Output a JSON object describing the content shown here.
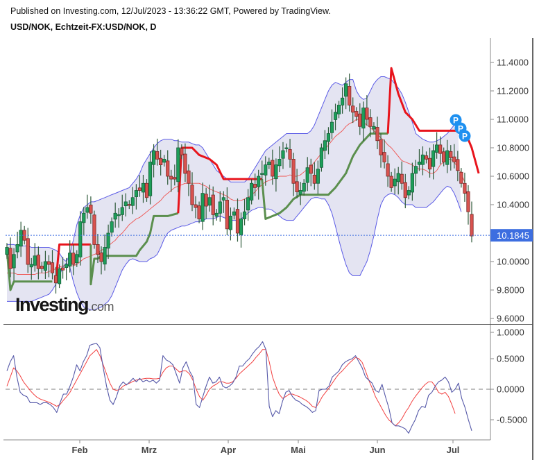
{
  "header": {
    "published": "Published on Investing.com, 12/Jul/2023 - 13:36:22 GMT, Powered by TradingView.",
    "symbol": "USD/NOK, Echtzeit-FX:USD/NOK, D"
  },
  "logo": {
    "main": "Investing",
    "suffix": ".com"
  },
  "colors": {
    "bull": "#1e9e5a",
    "bear": "#d9534f",
    "wick": "#2e5a3a",
    "band": "#5a5ae6",
    "band_fill": "#e4e4f2",
    "sma": "#ef5350",
    "supertrend_up": "#5b8f4e",
    "supertrend_down": "#e8141c",
    "last_price": "#3d6ee0",
    "osc_main": "#5558a8",
    "osc_signal": "#f24040",
    "p_marker": "#1e90f0"
  },
  "chart_data": [
    {
      "type": "candlestick",
      "title": "USD/NOK, Echtzeit-FX:USD/NOK, D",
      "xlabel": "",
      "ylabel": "",
      "ylim": [
        9.55,
        11.55
      ],
      "y_ticks": [
        "11.4000",
        "11.2000",
        "11.0000",
        "10.8000",
        "10.6000",
        "10.4000",
        "10.0000",
        "9.8000",
        "9.6000"
      ],
      "y_tick_values": [
        11.4,
        11.2,
        11.0,
        10.8,
        10.6,
        10.4,
        10.0,
        9.8,
        9.6
      ],
      "last_price": "10.1845",
      "last_price_value": 10.1845,
      "x_ticks": [
        "Feb",
        "Mrz",
        "Apr",
        "Mai",
        "Jun",
        "Jul"
      ],
      "x_tick_index": [
        20,
        40,
        62,
        84,
        107,
        128
      ],
      "grid": false,
      "legend": "none",
      "indicators": [
        "Bollinger Bands",
        "SMA (basis)",
        "SuperTrend",
        "Pivot markers P"
      ],
      "closes": [
        10.1,
        9.95,
        10.05,
        10.12,
        10.22,
        10.15,
        9.98,
        9.98,
        10.04,
        9.95,
        9.95,
        10.0,
        9.98,
        9.92,
        9.85,
        9.95,
        9.94,
        9.98,
        10.06,
        9.98,
        10.05,
        10.28,
        10.34,
        10.38,
        10.34,
        10.12,
        10.05,
        10.0,
        10.1,
        10.2,
        10.28,
        10.34,
        10.33,
        10.38,
        10.42,
        10.4,
        10.45,
        10.5,
        10.5,
        10.55,
        10.45,
        10.7,
        10.78,
        10.72,
        10.68,
        10.72,
        10.6,
        10.58,
        10.58,
        10.8,
        10.75,
        10.62,
        10.55,
        10.4,
        10.38,
        10.3,
        10.48,
        10.39,
        10.45,
        10.33,
        10.34,
        10.42,
        10.45,
        10.23,
        10.32,
        10.35,
        10.2,
        10.3,
        10.35,
        10.45,
        10.55,
        10.52,
        10.6,
        10.62,
        10.68,
        10.7,
        10.6,
        10.68,
        10.72,
        10.78,
        10.8,
        10.72,
        10.55,
        10.49,
        10.5,
        10.55,
        10.66,
        10.62,
        10.55,
        10.65,
        10.8,
        10.85,
        10.9,
        10.98,
        11.05,
        11.1,
        11.15,
        11.25,
        11.1,
        11.05,
        11.02,
        10.95,
        11.08,
        11.0,
        10.95,
        10.95,
        10.85,
        10.75,
        10.7,
        10.6,
        10.52,
        10.58,
        10.62,
        10.55,
        10.45,
        10.5,
        10.62,
        10.67,
        10.7,
        10.75,
        10.72,
        10.65,
        10.78,
        10.82,
        10.76,
        10.7,
        10.78,
        10.73,
        10.7,
        10.64,
        10.55,
        10.48,
        10.35,
        10.18
      ],
      "series": [
        {
          "name": "Bollinger Upper",
          "values": [
            10.12,
            10.12,
            10.12,
            10.11,
            10.11,
            10.11,
            10.11,
            10.1,
            10.1,
            10.1,
            10.1,
            10.1,
            10.1,
            10.09,
            10.08,
            10.06,
            10.02,
            10.0,
            10.05,
            10.15,
            10.26,
            10.33,
            10.38,
            10.4,
            10.42,
            10.42,
            10.43,
            10.44,
            10.45,
            10.46,
            10.47,
            10.48,
            10.49,
            10.5,
            10.51,
            10.52,
            10.55,
            10.58,
            10.62,
            10.68,
            10.72,
            10.76,
            10.8,
            10.83,
            10.85,
            10.86,
            10.86,
            10.86,
            10.85,
            10.85,
            10.84,
            10.84,
            10.84,
            10.83,
            10.82,
            10.82,
            10.8,
            10.76,
            10.72,
            10.68,
            10.64,
            10.62,
            10.6,
            10.58,
            10.56,
            10.56,
            10.56,
            10.56,
            10.56,
            10.58,
            10.62,
            10.66,
            10.7,
            10.74,
            10.78,
            10.8,
            10.82,
            10.84,
            10.86,
            10.88,
            10.9,
            10.9,
            10.9,
            10.9,
            10.9,
            10.9,
            10.9,
            10.92,
            10.96,
            11.02,
            11.08,
            11.14,
            11.2,
            11.24,
            11.26,
            11.25,
            11.24,
            11.26,
            11.28,
            11.28,
            11.2,
            11.16,
            11.14,
            11.15,
            11.2,
            11.25,
            11.28,
            11.3,
            11.3,
            11.29,
            11.28,
            11.25,
            11.22,
            11.18,
            11.12,
            11.05,
            10.98,
            10.9,
            10.88,
            10.86,
            10.85,
            10.84,
            10.84,
            10.85,
            10.86,
            10.88,
            10.9,
            10.93,
            10.96,
            10.98
          ]
        },
        {
          "name": "Bollinger Lower",
          "values": [
            9.72,
            9.72,
            9.72,
            9.72,
            9.72,
            9.72,
            9.72,
            9.72,
            9.73,
            9.74,
            9.75,
            9.76,
            9.77,
            9.8,
            9.84,
            9.9,
            9.96,
            9.99,
            9.96,
            9.86,
            9.78,
            9.72,
            9.68,
            9.67,
            9.66,
            9.66,
            9.67,
            9.68,
            9.7,
            9.72,
            9.76,
            9.82,
            9.88,
            9.94,
            9.98,
            10.01,
            10.02,
            10.01,
            10.0,
            10.0,
            10.0,
            10.02,
            10.03,
            10.05,
            10.1,
            10.16,
            10.2,
            10.22,
            10.23,
            10.24,
            10.25,
            10.25,
            10.26,
            10.27,
            10.28,
            10.28,
            10.29,
            10.3,
            10.3,
            10.3,
            10.31,
            10.32,
            10.31,
            10.3,
            10.29,
            10.29,
            10.29,
            10.3,
            10.32,
            10.34,
            10.36,
            10.37,
            10.38,
            10.38,
            10.37,
            10.37,
            10.36,
            10.34,
            10.32,
            10.3,
            10.29,
            10.29,
            10.29,
            10.32,
            10.35,
            10.38,
            10.41,
            10.44,
            10.45,
            10.45,
            10.44,
            10.44,
            10.4,
            10.34,
            10.25,
            10.15,
            10.06,
            9.98,
            9.92,
            9.9,
            9.9,
            9.9,
            9.95,
            10.0,
            10.08,
            10.18,
            10.3,
            10.4,
            10.45,
            10.47,
            10.48,
            10.47,
            10.45,
            10.42,
            10.4,
            10.4,
            10.4,
            10.38,
            10.38,
            10.38,
            10.38,
            10.4,
            10.42,
            10.45,
            10.48,
            10.51,
            10.53,
            10.52,
            10.48,
            10.42,
            10.35
          ]
        },
        {
          "name": "SMA basis",
          "values": [
            9.92,
            9.92,
            9.92,
            9.91,
            9.91,
            9.91,
            9.91,
            9.91,
            9.91,
            9.92,
            9.92,
            9.92,
            9.93,
            9.94,
            9.95,
            9.96,
            9.97,
            9.97,
            9.97,
            9.97,
            9.98,
            10.0,
            10.02,
            10.03,
            10.04,
            10.05,
            10.06,
            10.08,
            10.09,
            10.11,
            10.13,
            10.15,
            10.18,
            10.2,
            10.23,
            10.26,
            10.28,
            10.3,
            10.31,
            10.33,
            10.35,
            10.37,
            10.39,
            10.41,
            10.43,
            10.46,
            10.48,
            10.5,
            10.52,
            10.53,
            10.54,
            10.55,
            10.55,
            10.55,
            10.55,
            10.55,
            10.54,
            10.53,
            10.51,
            10.5,
            10.49,
            10.48,
            10.47,
            10.46,
            10.44,
            10.43,
            10.43,
            10.43,
            10.44,
            10.45,
            10.47,
            10.49,
            10.52,
            10.54,
            10.56,
            10.57,
            10.58,
            10.59,
            10.6,
            10.6,
            10.6,
            10.61,
            10.6,
            10.6,
            10.61,
            10.63,
            10.65,
            10.67,
            10.7,
            10.73,
            10.76,
            10.79,
            10.82,
            10.85,
            10.88,
            10.9,
            10.92,
            10.95,
            10.97,
            10.98,
            11.0,
            11.0,
            10.98,
            10.96,
            10.94,
            10.92,
            10.9,
            10.87,
            10.85,
            10.82,
            10.8,
            10.77,
            10.74,
            10.71,
            10.7,
            10.69,
            10.68,
            10.66,
            10.65,
            10.65,
            10.64,
            10.62,
            10.62,
            10.64,
            10.68,
            10.7,
            10.72,
            10.72,
            10.7,
            10.66,
            10.62,
            10.56
          ]
        }
      ]
    },
    {
      "type": "line",
      "title": "Oscillator",
      "ylim": [
        -0.72,
        1.05
      ],
      "y_ticks": [
        "1.0000",
        "0.5000",
        "0.0000",
        "-0.5000"
      ],
      "y_tick_values": [
        1.0,
        0.5,
        0.0,
        -0.5
      ],
      "zero_line": "dashed",
      "series": [
        {
          "name": "Main",
          "values": [
            0.3,
            0.45,
            0.55,
            0.2,
            -0.05,
            -0.1,
            -0.12,
            -0.22,
            -0.22,
            -0.22,
            -0.25,
            -0.22,
            -0.22,
            -0.25,
            -0.3,
            -0.38,
            -0.22,
            -0.08,
            -0.08,
            0.05,
            0.2,
            0.4,
            0.3,
            0.45,
            0.55,
            0.72,
            0.74,
            0.75,
            0.68,
            0.35,
            0.05,
            -0.18,
            -0.25,
            -0.12,
            0.05,
            0.12,
            0.07,
            0.12,
            0.18,
            0.12,
            0.18,
            0.12,
            0.15,
            0.12,
            0.15,
            0.1,
            0.15,
            0.55,
            0.48,
            0.45,
            0.4,
            0.25,
            0.1,
            0.35,
            0.45,
            0.3,
            0.2,
            -0.25,
            -0.3,
            -0.12,
            0.05,
            0.2,
            0.1,
            0.12,
            0.2,
            0.05,
            0.02,
            0.05,
            0.1,
            0.2,
            0.38,
            0.38,
            0.45,
            0.5,
            0.58,
            0.65,
            0.7,
            0.78,
            0.65,
            -0.28,
            -0.45,
            -0.35,
            -0.4,
            -0.2,
            -0.05,
            -0.02,
            -0.12,
            -0.18,
            -0.2,
            -0.25,
            -0.28,
            -0.32,
            -0.38,
            -0.35,
            -0.02,
            0.0,
            0.0,
            0.05,
            0.2,
            0.25,
            0.3,
            0.4,
            0.45,
            0.48,
            0.5,
            0.55,
            0.45,
            0.35,
            0.2,
            0.15,
            0.1,
            -0.02,
            -0.05,
            0.08,
            -0.12,
            -0.3,
            -0.55,
            -0.6,
            -0.6,
            -0.62,
            -0.65,
            -0.72,
            -0.6,
            -0.5,
            -0.35,
            -0.28,
            -0.3,
            -0.1,
            -0.05,
            0.05,
            0.12,
            0.15,
            0.2,
            0.12,
            -0.05,
            0.0,
            0.1,
            -0.15,
            -0.3,
            -0.5,
            -0.68
          ]
        },
        {
          "name": "Signal",
          "values": [
            0.05,
            0.2,
            0.35,
            0.3,
            0.22,
            0.12,
            0.05,
            -0.02,
            -0.08,
            -0.13,
            -0.16,
            -0.18,
            -0.2,
            -0.22,
            -0.25,
            -0.28,
            -0.25,
            -0.18,
            -0.12,
            -0.05,
            0.05,
            0.15,
            0.25,
            0.35,
            0.45,
            0.55,
            0.6,
            0.65,
            0.55,
            0.4,
            0.25,
            0.1,
            0.0,
            -0.02,
            0.0,
            0.05,
            0.08,
            0.1,
            0.13,
            0.15,
            0.16,
            0.17,
            0.18,
            0.18,
            0.17,
            0.17,
            0.18,
            0.28,
            0.35,
            0.38,
            0.38,
            0.33,
            0.28,
            0.3,
            0.3,
            0.25,
            0.15,
            0.0,
            -0.12,
            -0.18,
            -0.1,
            0.0,
            0.05,
            0.08,
            0.12,
            0.12,
            0.1,
            0.1,
            0.12,
            0.18,
            0.25,
            0.3,
            0.35,
            0.4,
            0.45,
            0.52,
            0.58,
            0.65,
            0.65,
            0.45,
            0.2,
            0.05,
            -0.08,
            -0.15,
            -0.12,
            -0.08,
            -0.08,
            -0.1,
            -0.12,
            -0.15,
            -0.18,
            -0.22,
            -0.28,
            -0.3,
            -0.22,
            -0.12,
            -0.05,
            0.02,
            0.1,
            0.18,
            0.25,
            0.3,
            0.36,
            0.42,
            0.47,
            0.52,
            0.5,
            0.44,
            0.3,
            0.15,
            0.02,
            -0.12,
            -0.22,
            -0.32,
            -0.42,
            -0.5,
            -0.55,
            -0.6,
            -0.55,
            -0.48,
            -0.38,
            -0.3,
            -0.2,
            -0.12,
            -0.05,
            0.02,
            0.08,
            0.12,
            0.12,
            0.05,
            -0.05,
            -0.08,
            -0.05,
            -0.12,
            -0.25,
            -0.4
          ]
        }
      ]
    }
  ]
}
